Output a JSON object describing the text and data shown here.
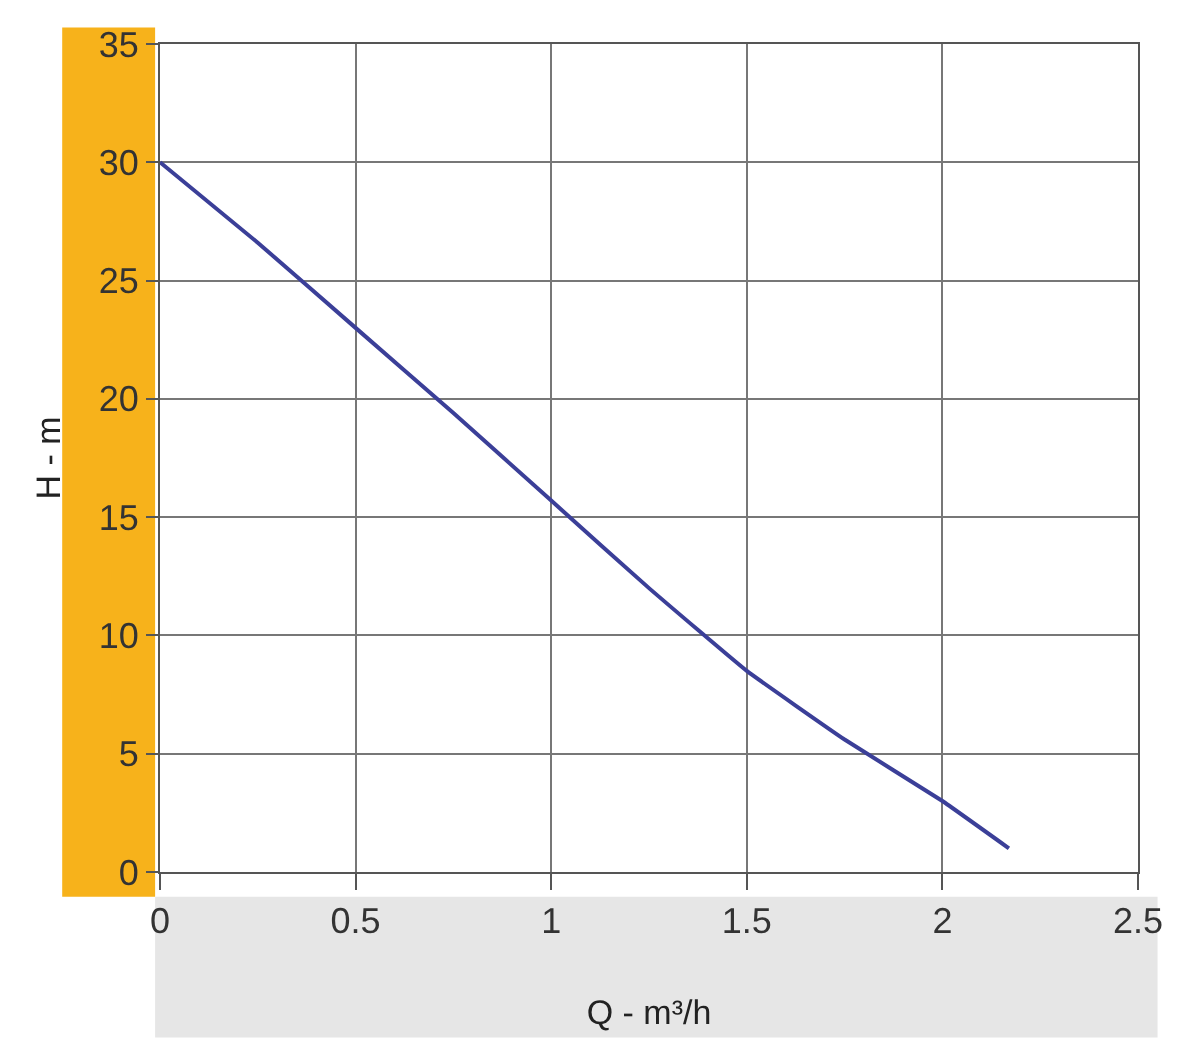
{
  "chart_data": {
    "type": "line",
    "xlabel": "Q - m³/h",
    "ylabel": "H - m",
    "x": [
      0,
      0.25,
      0.5,
      0.75,
      1,
      1.25,
      1.5,
      1.75,
      2,
      2.17
    ],
    "series": [
      {
        "color": "#3b3f98",
        "values": [
          30,
          26.6,
          23,
          19.4,
          15.7,
          12,
          8.5,
          5.6,
          3,
          1
        ]
      }
    ],
    "xlim": [
      0,
      2.5
    ],
    "xticks": [
      0,
      0.5,
      1,
      1.5,
      2,
      2.5
    ],
    "ylim": [
      0,
      35
    ],
    "yticks": [
      0,
      5,
      10,
      15,
      20,
      25,
      30,
      35
    ],
    "grid": true,
    "legend": false,
    "marker": "none",
    "line_style": "solid"
  }
}
